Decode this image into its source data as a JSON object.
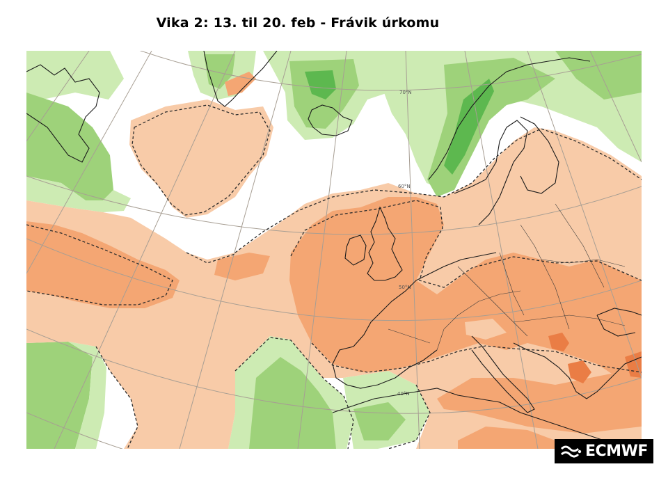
{
  "slide": {
    "title": "Vika 2:  13. til 20. feb -  Frávik úrkomu"
  },
  "map": {
    "colors": {
      "dry_light": "#f8cba8",
      "dry_medium": "#f4a673",
      "dry_strong": "#ea7d45",
      "wet_light": "#cdebb3",
      "wet_medium": "#9ed27a",
      "wet_strong": "#5db84f",
      "coastline": "#1a1a1a",
      "graticule": "#a79e93",
      "contour": "#2b2b2b"
    },
    "latitude_labels": [
      "70°N",
      "60°N",
      "50°N",
      "40°N"
    ]
  },
  "logo": {
    "text": "ECMWF",
    "icon": "ecmwf-logo-icon"
  }
}
